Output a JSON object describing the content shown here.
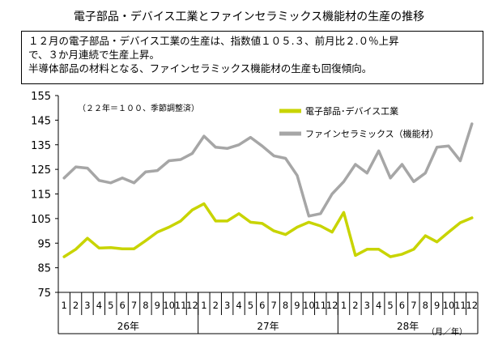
{
  "page": {
    "title": "電子部品・デバイス工業とファインセラミックス機能材の生産の推移",
    "summary_lines": [
      "１２月の電子部品・デバイス工業の生産は、指数値１０５.３、前月比２.０％上昇",
      "で、３か月連続で生産上昇。",
      "半導体部品の材料となる、ファインセラミックス機能材の生産も回復傾向。"
    ]
  },
  "chart_data": {
    "type": "line",
    "note": "（２２年＝１００、季節調整済）",
    "axis_unit_label": "（月／年）",
    "ylim": [
      75,
      155
    ],
    "yticks": [
      75,
      85,
      95,
      105,
      115,
      125,
      135,
      145,
      155
    ],
    "grid": false,
    "legend_position": "top-right",
    "x": [
      "1",
      "2",
      "3",
      "4",
      "5",
      "6",
      "7",
      "8",
      "9",
      "10",
      "11",
      "12",
      "1",
      "2",
      "3",
      "4",
      "5",
      "6",
      "7",
      "8",
      "9",
      "10",
      "11",
      "12",
      "1",
      "2",
      "3",
      "4",
      "5",
      "6",
      "7",
      "8",
      "9",
      "10",
      "11",
      "12"
    ],
    "year_groups": [
      {
        "label": "26年",
        "start": 0,
        "count": 12
      },
      {
        "label": "27年",
        "start": 12,
        "count": 12
      },
      {
        "label": "28年",
        "start": 24,
        "count": 12
      }
    ],
    "series": [
      {
        "name": "電子部品･デバイス工業",
        "color": "#c8d400",
        "values": [
          89.5,
          92.5,
          97,
          93,
          93.2,
          92.7,
          92.7,
          96,
          99.5,
          101.5,
          104,
          108.5,
          111,
          104,
          104,
          107,
          103.5,
          103,
          100,
          98.5,
          101.5,
          103.5,
          102,
          99.5,
          107.5,
          90,
          92.5,
          92.5,
          89.5,
          90.5,
          92.5,
          98,
          95.5,
          99.5,
          103.3,
          105.3
        ]
      },
      {
        "name": "ファインセラミックス（機能材）",
        "color": "#a6a6a6",
        "values": [
          121.5,
          126,
          125.5,
          120.5,
          119.5,
          121.5,
          119.5,
          124,
          124.5,
          128.5,
          129,
          131.5,
          138.5,
          134,
          133.5,
          135,
          138,
          134.5,
          130.5,
          129.5,
          122.5,
          106,
          107,
          115,
          120,
          127,
          123.5,
          132.5,
          121.5,
          127,
          120,
          123.5,
          134,
          134.5,
          128.5,
          143.5
        ]
      }
    ]
  }
}
